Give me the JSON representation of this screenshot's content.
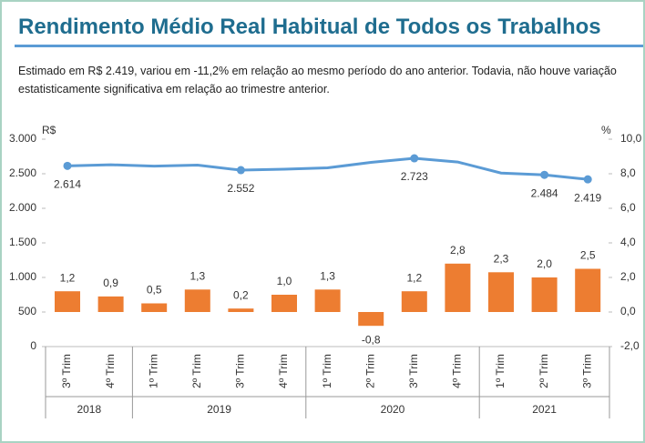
{
  "chart_data": {
    "type": "bar_line",
    "title": "Rendimento Médio Real Habitual de Todos os Trabalhos",
    "subtitle": "Estimado em R$ 2.419, variou em -11,2% em relação ao mesmo período do ano anterior. Todavia, não houve variação estatisticamente significativa em relação ao trimestre anterior.",
    "y_label": "R$",
    "y2_label": "%",
    "groups": [
      {
        "label": "2018",
        "categories": [
          "3º Trim",
          "4º Trim"
        ]
      },
      {
        "label": "2019",
        "categories": [
          "1º Trim",
          "2º Trim",
          "3º Trim",
          "4º Trim"
        ]
      },
      {
        "label": "2020",
        "categories": [
          "1º Trim",
          "2º Trim",
          "3º Trim",
          "4º Trim"
        ]
      },
      {
        "label": "2021",
        "categories": [
          "1º Trim",
          "2º Trim",
          "3º Trim"
        ]
      }
    ],
    "series": [
      {
        "type": "line",
        "color": "#5b9bd5",
        "axis": "y",
        "values": [
          2614,
          2630,
          2610,
          2625,
          2552,
          2565,
          2585,
          2665,
          2723,
          2670,
          2510,
          2484,
          2419
        ],
        "value_labels": [
          "2.614",
          null,
          null,
          null,
          "2.552",
          null,
          null,
          null,
          "2.723",
          null,
          null,
          "2.484",
          "2.419"
        ]
      },
      {
        "type": "bar",
        "color": "#ed7d31",
        "axis": "y2",
        "values": [
          1.2,
          0.9,
          0.5,
          1.3,
          0.2,
          1.0,
          1.3,
          -0.8,
          1.2,
          2.8,
          2.3,
          2.0,
          2.5
        ],
        "value_labels": [
          "1,2",
          "0,9",
          "0,5",
          "1,3",
          "0,2",
          "1,0",
          "1,3",
          "-0,8",
          "1,2",
          "2,8",
          "2,3",
          "2,0",
          "2,5"
        ]
      }
    ],
    "ylim": [
      0,
      3000
    ],
    "yticks": [
      0,
      500,
      {
        "value": 1000,
        "label": "1.000"
      },
      {
        "value": 1500,
        "label": "1.500"
      },
      {
        "value": 2000,
        "label": "2.000"
      },
      {
        "value": 2500,
        "label": "2.500"
      },
      {
        "value": 3000,
        "label": "3.000"
      }
    ],
    "y2lim": [
      -2,
      10
    ],
    "y2ticks": [
      {
        "value": -2,
        "label": "-2,0"
      },
      {
        "value": 0,
        "label": "0,0"
      },
      {
        "value": 2,
        "label": "2,0"
      },
      {
        "value": 4,
        "label": "4,0"
      },
      {
        "value": 6,
        "label": "6,0"
      },
      {
        "value": 8,
        "label": "8,0"
      },
      {
        "value": 10,
        "label": "10,0"
      }
    ]
  }
}
